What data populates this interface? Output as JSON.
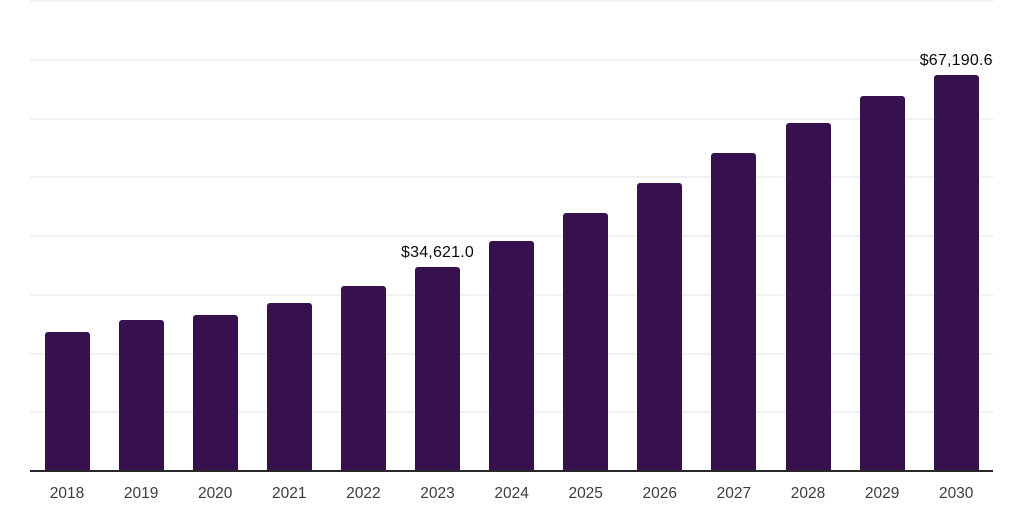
{
  "chart_data": {
    "type": "bar",
    "title": "",
    "categories": [
      "2018",
      "2019",
      "2020",
      "2021",
      "2022",
      "2023",
      "2024",
      "2025",
      "2026",
      "2027",
      "2028",
      "2029",
      "2030"
    ],
    "values": [
      23550,
      25600,
      26450,
      28500,
      31250,
      34621.0,
      38950,
      43700,
      48850,
      53950,
      59100,
      63700,
      67190.6
    ],
    "point_labels": [
      "",
      "",
      "",
      "",
      "",
      "$34,621.0",
      "",
      "",
      "",
      "",
      "",
      "",
      "$67,190.6"
    ],
    "xlabel": "",
    "ylabel": "",
    "ylim": [
      0,
      80000
    ],
    "gridline_step": 10000,
    "grid": true,
    "y_tick_labels_shown": false,
    "legend_position": "none",
    "bar_color": "#36114d",
    "axis_line_color": "#282828",
    "gridline_color": "#f0f0f0",
    "value_label_color": "#0a0a0a",
    "tick_label_color": "#3c3c3c"
  }
}
